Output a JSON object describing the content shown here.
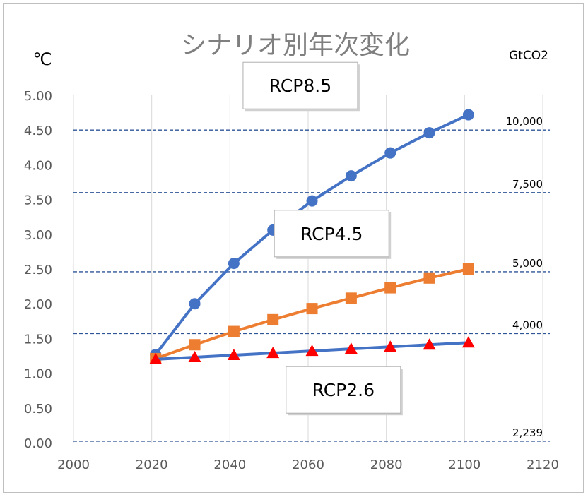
{
  "chart_data": {
    "type": "line",
    "title": "シナリオ別年次変化",
    "ylabel": "℃",
    "y2label": "GtCO2",
    "xlim": [
      2000,
      2120
    ],
    "ylim": [
      0,
      5
    ],
    "x_ticks": [
      "2000",
      "2020",
      "2040",
      "2060",
      "2080",
      "2100",
      "2120"
    ],
    "y_ticks": [
      "0.00",
      "0.50",
      "1.00",
      "1.50",
      "2.00",
      "2.50",
      "3.00",
      "3.50",
      "4.00",
      "4.50",
      "5.00"
    ],
    "grid": "vertical",
    "series": [
      {
        "name": "RCP8.5",
        "color": "#4472c4",
        "marker": "circle",
        "x": [
          2021,
          2031,
          2041,
          2051,
          2061,
          2071,
          2081,
          2091,
          2101
        ],
        "y": [
          1.27,
          2.0,
          2.58,
          3.06,
          3.48,
          3.84,
          4.17,
          4.46,
          4.72
        ]
      },
      {
        "name": "RCP4.5",
        "color": "#ed7d31",
        "marker": "square",
        "x": [
          2021,
          2031,
          2041,
          2051,
          2061,
          2071,
          2081,
          2091,
          2101
        ],
        "y": [
          1.21,
          1.41,
          1.6,
          1.77,
          1.93,
          2.08,
          2.23,
          2.37,
          2.5
        ]
      },
      {
        "name": "RCP2.6",
        "color": "#4472c4",
        "marker_color": "#ff0000",
        "marker": "triangle",
        "x": [
          2021,
          2031,
          2041,
          2051,
          2061,
          2071,
          2081,
          2091,
          2101
        ],
        "y": [
          1.2,
          1.23,
          1.26,
          1.29,
          1.32,
          1.35,
          1.38,
          1.41,
          1.44
        ]
      }
    ],
    "reference_lines": [
      {
        "y": 4.5,
        "label": "10,000"
      },
      {
        "y": 3.6,
        "label": "7,500"
      },
      {
        "y": 2.46,
        "label": "5,000"
      },
      {
        "y": 1.57,
        "label": "4,000"
      },
      {
        "y": 0.02,
        "label": "2,239"
      }
    ],
    "ref_line_color": "#2f5597",
    "annotations": [
      {
        "text": "RCP8.5",
        "x": 2058,
        "y": 5.14
      },
      {
        "text": "RCP4.5",
        "x": 2066,
        "y": 3.01
      },
      {
        "text": "RCP2.6",
        "x": 2069,
        "y": 0.76
      }
    ]
  }
}
